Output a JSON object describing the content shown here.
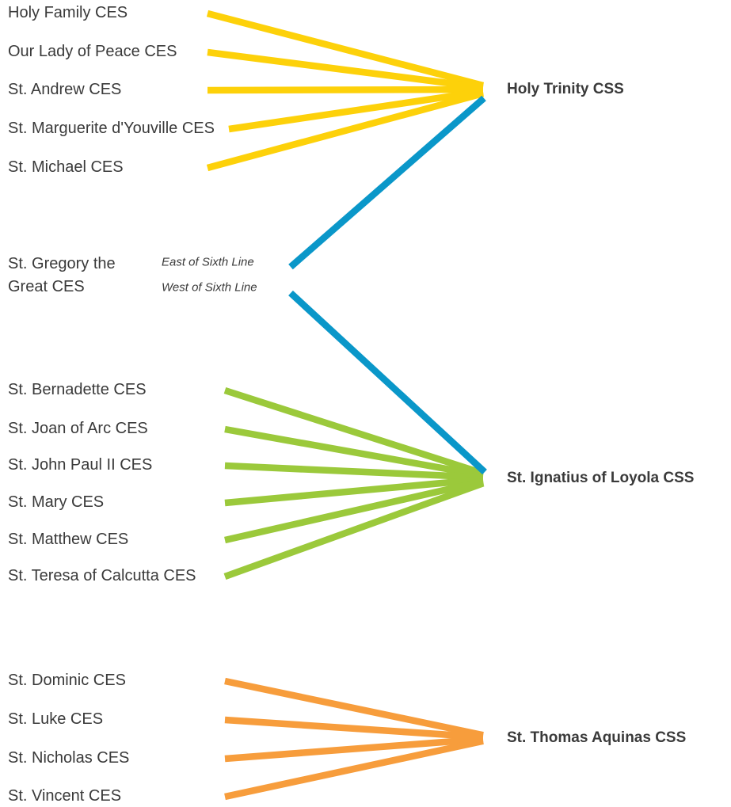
{
  "groups": [
    {
      "target": "Holy Trinity CSS",
      "color": "#fdd10a",
      "schools": [
        "Holy Family CES",
        "Our Lady of Peace CES",
        "St. Andrew CES",
        "St. Marguerite d'Youville CES",
        "St. Michael CES"
      ]
    },
    {
      "target": "St. Ignatius of Loyola CSS",
      "color": "#9bc93b",
      "schools": [
        "St. Bernadette CES",
        "St. Joan of Arc CES",
        "St. John Paul II CES",
        "St. Mary CES",
        "St. Matthew CES",
        "St. Teresa of Calcutta CES"
      ]
    },
    {
      "target": "St. Thomas Aquinas CSS",
      "color": "#f79d3c",
      "schools": [
        "St. Dominic CES",
        "St. Luke CES",
        "St. Nicholas CES",
        "St. Vincent CES"
      ]
    }
  ],
  "split": {
    "school": "St. Gregory the Great CES",
    "color": "#0a97c9",
    "branches": [
      "East of Sixth Line",
      "West of Sixth Line"
    ]
  }
}
